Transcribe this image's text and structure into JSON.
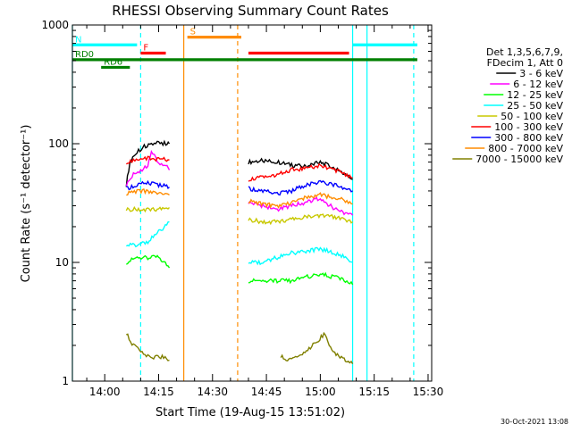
{
  "chart_data": {
    "type": "line",
    "title": "RHESSI Observing Summary Count Rates",
    "xlabel": "Start Time (19-Aug-15 13:51:02)",
    "ylabel": "Count Rate (s⁻¹ detector⁻¹)",
    "x_unit": "minutes",
    "xlim": [
      "13:51",
      "15:31"
    ],
    "ylim": [
      1,
      1000
    ],
    "y_scale": "log",
    "x_ticks": [
      "14:00",
      "14:15",
      "14:30",
      "14:45",
      "15:00",
      "15:15",
      "15:30"
    ],
    "y_ticks": [
      {
        "value": 1,
        "label": "1"
      },
      {
        "value": 10,
        "label": "10"
      },
      {
        "value": 100,
        "label": "100"
      },
      {
        "value": 1000,
        "label": "1000"
      }
    ],
    "legend": {
      "placement": "right",
      "header": [
        "Det 1,3,5,6,7,9,",
        "FDecim 1, Att 0"
      ]
    },
    "series": [
      {
        "name": "3 - 6 keV",
        "color": "#000000",
        "segments": [
          {
            "x": [
              "14:06",
              "14:07",
              "14:09",
              "14:11",
              "14:13",
              "14:15",
              "14:17",
              "14:18"
            ],
            "y": [
              45,
              70,
              85,
              95,
              100,
              102,
              100,
              100
            ]
          },
          {
            "x": [
              "14:40",
              "14:44",
              "14:48",
              "14:52",
              "14:56",
              "15:00",
              "15:04",
              "15:07",
              "15:09"
            ],
            "y": [
              70,
              72,
              70,
              66,
              64,
              70,
              62,
              55,
              50
            ]
          }
        ]
      },
      {
        "name": "6 - 12 keV",
        "color": "#ff00ff",
        "segments": [
          {
            "x": [
              "14:06",
              "14:08",
              "14:10",
              "14:12",
              "14:13",
              "14:15",
              "14:17",
              "14:18"
            ],
            "y": [
              45,
              55,
              60,
              65,
              85,
              70,
              65,
              60
            ]
          },
          {
            "x": [
              "14:40",
              "14:44",
              "14:48",
              "14:52",
              "14:56",
              "15:00",
              "15:04",
              "15:07",
              "15:09"
            ],
            "y": [
              32,
              30,
              28,
              30,
              32,
              35,
              28,
              26,
              25
            ]
          }
        ]
      },
      {
        "name": "12 - 25 keV",
        "color": "#00ff00",
        "segments": [
          {
            "x": [
              "14:06",
              "14:09",
              "14:12",
              "14:15",
              "14:18"
            ],
            "y": [
              10,
              11,
              11,
              11,
              9
            ]
          },
          {
            "x": [
              "14:40",
              "14:44",
              "14:48",
              "14:52",
              "14:56",
              "15:00",
              "15:04",
              "15:07",
              "15:09"
            ],
            "y": [
              7,
              7,
              7,
              7,
              7.5,
              8,
              7.5,
              7,
              6.5
            ]
          }
        ]
      },
      {
        "name": "25 - 50 keV",
        "color": "#00ffff",
        "segments": [
          {
            "x": [
              "14:06",
              "14:09",
              "14:12",
              "14:15",
              "14:18"
            ],
            "y": [
              14,
              14,
              15,
              18,
              22
            ]
          },
          {
            "x": [
              "14:40",
              "14:44",
              "14:48",
              "14:52",
              "14:56",
              "15:00",
              "15:04",
              "15:07",
              "15:09"
            ],
            "y": [
              10,
              10,
              11,
              12,
              12.5,
              13,
              12,
              11,
              10
            ]
          }
        ]
      },
      {
        "name": "50 - 100 keV",
        "color": "#c8c800",
        "segments": [
          {
            "x": [
              "14:06",
              "14:09",
              "14:12",
              "14:15",
              "14:18"
            ],
            "y": [
              28,
              28,
              28,
              28,
              29
            ]
          },
          {
            "x": [
              "14:40",
              "14:44",
              "14:48",
              "14:52",
              "14:56",
              "15:00",
              "15:04",
              "15:07",
              "15:09"
            ],
            "y": [
              23,
              22,
              22,
              23,
              24,
              25,
              24,
              23,
              22
            ]
          }
        ]
      },
      {
        "name": "100 - 300 keV",
        "color": "#ff0000",
        "segments": [
          {
            "x": [
              "14:06",
              "14:08",
              "14:10",
              "14:12",
              "14:15",
              "14:18"
            ],
            "y": [
              70,
              72,
              74,
              75,
              74,
              73
            ]
          },
          {
            "x": [
              "14:40",
              "14:44",
              "14:48",
              "14:52",
              "14:56",
              "15:00",
              "15:04",
              "15:07",
              "15:09"
            ],
            "y": [
              50,
              52,
              55,
              60,
              62,
              65,
              60,
              55,
              52
            ]
          }
        ]
      },
      {
        "name": "300 - 800 keV",
        "color": "#0000ff",
        "segments": [
          {
            "x": [
              "14:06",
              "14:09",
              "14:12",
              "14:15",
              "14:18"
            ],
            "y": [
              42,
              45,
              47,
              45,
              43
            ]
          },
          {
            "x": [
              "14:40",
              "14:44",
              "14:48",
              "14:52",
              "14:56",
              "15:00",
              "15:04",
              "15:07",
              "15:09"
            ],
            "y": [
              42,
              40,
              38,
              40,
              45,
              48,
              45,
              42,
              40
            ]
          }
        ]
      },
      {
        "name": "800 - 7000 keV",
        "color": "#ff8c00",
        "segments": [
          {
            "x": [
              "14:06",
              "14:09",
              "14:12",
              "14:15",
              "14:18"
            ],
            "y": [
              38,
              40,
              40,
              38,
              37
            ]
          },
          {
            "x": [
              "14:40",
              "14:44",
              "14:48",
              "14:52",
              "14:56",
              "15:00",
              "15:04",
              "15:07",
              "15:09"
            ],
            "y": [
              33,
              31,
              30,
              32,
              35,
              37,
              35,
              33,
              31
            ]
          }
        ]
      },
      {
        "name": "7000 - 15000 keV",
        "color": "#808000",
        "segments": [
          {
            "x": [
              "14:06",
              "14:08",
              "14:10",
              "14:12",
              "14:14",
              "14:16",
              "14:18"
            ],
            "y": [
              2.5,
              2,
              1.8,
              1.6,
              1.6,
              1.6,
              1.5
            ]
          },
          {
            "x": [
              "14:49",
              "14:52",
              "14:55",
              "14:58",
              "15:01",
              "15:04",
              "15:07",
              "15:09"
            ],
            "y": [
              1.6,
              1.5,
              1.7,
              2,
              2.5,
              1.7,
              1.5,
              1.4
            ]
          }
        ]
      }
    ],
    "flag_bars": [
      {
        "label": "N",
        "color": "#00ffff",
        "segments": [
          [
            "13:51",
            "14:09"
          ],
          [
            "15:09",
            "15:27"
          ]
        ],
        "level": 680
      },
      {
        "label": "S",
        "color": "#ff8c00",
        "segments": [
          [
            "14:23",
            "14:38"
          ]
        ],
        "level": 790
      },
      {
        "label": "F",
        "color": "#ff0000",
        "segments": [
          [
            "14:10",
            "14:17"
          ],
          [
            "14:40",
            "15:08"
          ]
        ],
        "level": 580
      },
      {
        "label": "RD0",
        "color": "#008000",
        "segments": [
          [
            "13:51",
            "15:27"
          ]
        ],
        "level": 510
      },
      {
        "label": "RD6",
        "color": "#008000",
        "segments": [
          [
            "13:59",
            "14:07"
          ]
        ],
        "level": 440
      }
    ],
    "vertical_markers": [
      {
        "x": "13:51",
        "color": "#00ffff",
        "style": "solid"
      },
      {
        "x": "14:10",
        "color": "#00ffff",
        "style": "dashed"
      },
      {
        "x": "14:22",
        "color": "#ff8c00",
        "style": "solid"
      },
      {
        "x": "14:37",
        "color": "#ff8c00",
        "style": "dashed"
      },
      {
        "x": "15:09",
        "color": "#00ffff",
        "style": "solid"
      },
      {
        "x": "15:13",
        "color": "#00ffff",
        "style": "solid"
      },
      {
        "x": "15:26",
        "color": "#00ffff",
        "style": "dashed"
      }
    ]
  },
  "footer": {
    "timestamp": "30-Oct-2021 13:08"
  }
}
